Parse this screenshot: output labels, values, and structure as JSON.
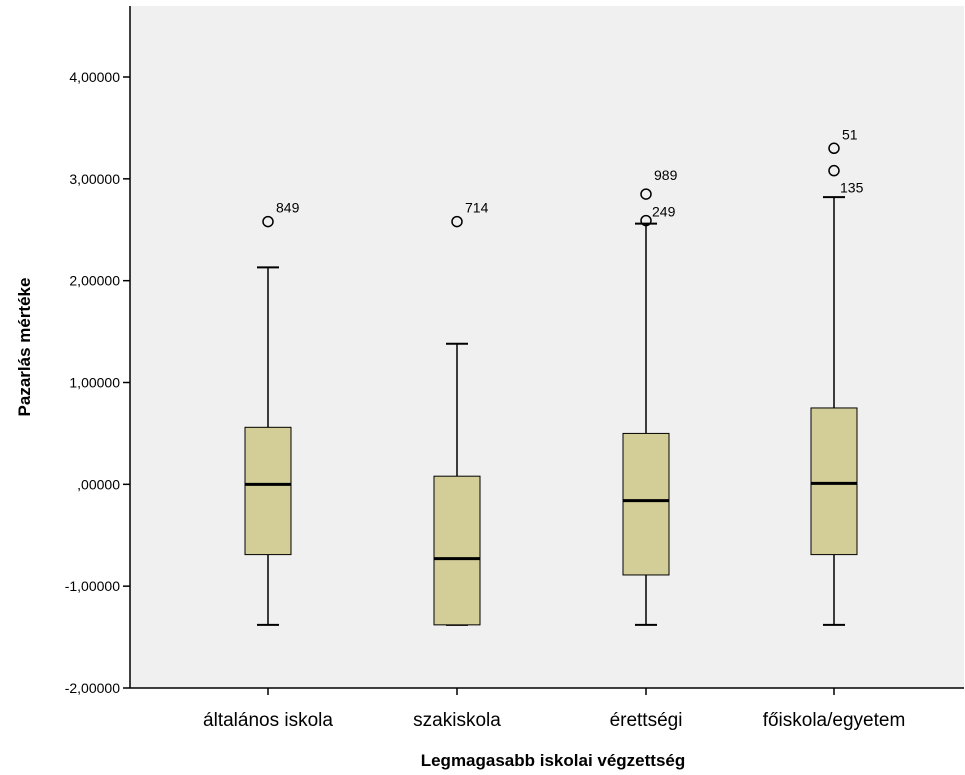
{
  "chart_data": {
    "type": "boxplot",
    "xlabel": "Legmagasabb iskolai végzettség",
    "ylabel": "Pazarlás mértéke",
    "ylim": [
      -2,
      4.6
    ],
    "yticks": [
      {
        "value": -2,
        "label": "-2,00000"
      },
      {
        "value": -1,
        "label": "-1,00000"
      },
      {
        "value": 0,
        "label": ",00000"
      },
      {
        "value": 1,
        "label": "1,00000"
      },
      {
        "value": 2,
        "label": "2,00000"
      },
      {
        "value": 3,
        "label": "3,00000"
      },
      {
        "value": 4,
        "label": "4,00000"
      }
    ],
    "grid": false,
    "background": "#f0f0f0",
    "box_color": "#d3ce97",
    "categories": [
      "általános iskola",
      "szakiskola",
      "érettségi",
      "főiskola/egyetem"
    ],
    "boxes": [
      {
        "category": "általános iskola",
        "whisker_low": -1.38,
        "q1": -0.69,
        "median": 0.0,
        "q3": 0.56,
        "whisker_high": 2.13,
        "outliers": [
          {
            "value": 2.58,
            "label": "849"
          }
        ]
      },
      {
        "category": "szakiskola",
        "whisker_low": -1.38,
        "q1": -1.38,
        "median": -0.73,
        "q3": 0.08,
        "whisker_high": 1.38,
        "outliers": [
          {
            "value": 2.58,
            "label": "714"
          }
        ]
      },
      {
        "category": "érettségi",
        "whisker_low": -1.38,
        "q1": -0.89,
        "median": -0.16,
        "q3": 0.5,
        "whisker_high": 2.56,
        "outliers": [
          {
            "value": 2.85,
            "label": "989"
          },
          {
            "value": 2.59,
            "label": "249"
          }
        ]
      },
      {
        "category": "főiskola/egyetem",
        "whisker_low": -1.38,
        "q1": -0.69,
        "median": 0.01,
        "q3": 0.75,
        "whisker_high": 2.82,
        "outliers": [
          {
            "value": 3.3,
            "label": "51"
          },
          {
            "value": 3.08,
            "label": "135"
          }
        ]
      }
    ]
  }
}
